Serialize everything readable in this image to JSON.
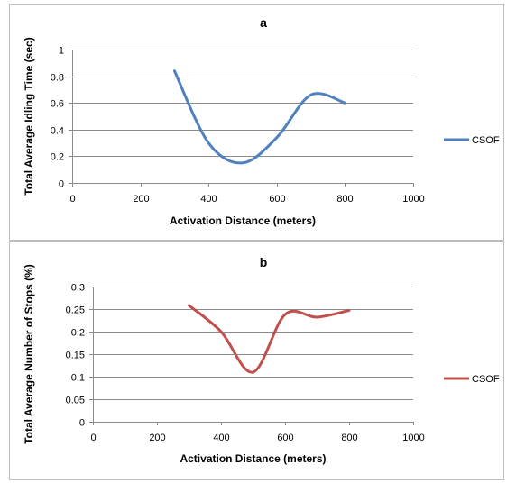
{
  "chart_data": [
    {
      "type": "line",
      "title": "a",
      "xlabel": "Activation Distance (meters)",
      "ylabel": "Total Average Idling Time (sec)",
      "xlim": [
        0,
        1000
      ],
      "ylim": [
        0,
        1
      ],
      "xticks": [
        "0",
        "200",
        "400",
        "600",
        "800",
        "1000"
      ],
      "yticks": [
        "0",
        "0.2",
        "0.4",
        "0.6",
        "0.8",
        "1"
      ],
      "grid": true,
      "legend_position": "right",
      "smooth": true,
      "series": [
        {
          "name": "CSOF",
          "color": "#4f81bd",
          "x": [
            300,
            400,
            500,
            600,
            700,
            800
          ],
          "y": [
            0.84,
            0.3,
            0.15,
            0.34,
            0.66,
            0.6
          ]
        }
      ]
    },
    {
      "type": "line",
      "title": "b",
      "xlabel": "Activation Distance (meters)",
      "ylabel": "Total Average Number of Stops (%)",
      "xlim": [
        0,
        1000
      ],
      "ylim": [
        0,
        0.3
      ],
      "xticks": [
        "0",
        "200",
        "400",
        "600",
        "800",
        "1000"
      ],
      "yticks": [
        "0",
        "0.05",
        "0.1",
        "0.15",
        "0.2",
        "0.25",
        "0.3"
      ],
      "grid": true,
      "legend_position": "right",
      "smooth": true,
      "series": [
        {
          "name": "CSOF",
          "color": "#c0504d",
          "x": [
            300,
            400,
            500,
            600,
            700,
            800
          ],
          "y": [
            0.258,
            0.2,
            0.11,
            0.238,
            0.232,
            0.247
          ]
        }
      ]
    }
  ]
}
